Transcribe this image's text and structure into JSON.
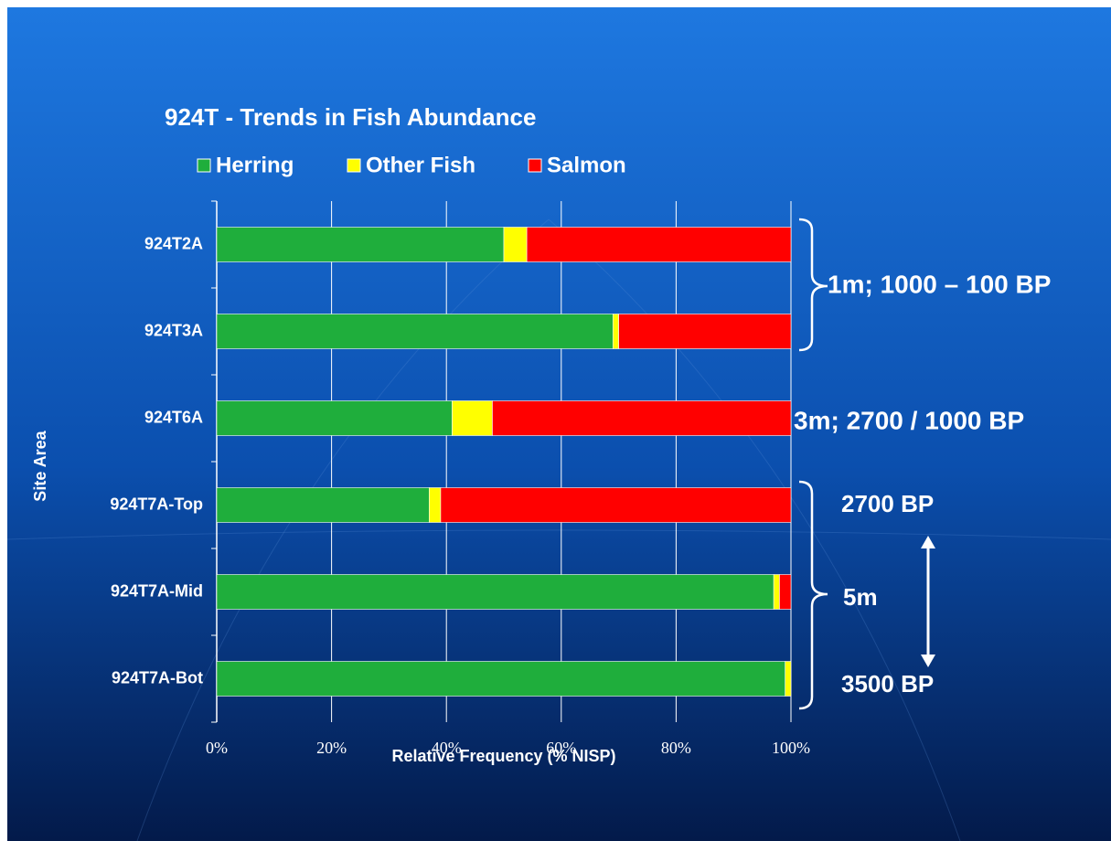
{
  "chart_data": {
    "type": "stacked_barh",
    "title": "924T - Trends in Fish Abundance",
    "categories": [
      "924T2A",
      "924T3A",
      "924T6A",
      "924T7A-Top",
      "924T7A-Mid",
      "924T7A-Bot"
    ],
    "series": [
      {
        "name": "Herring",
        "color": "#1fae3c",
        "values": [
          50,
          69,
          41,
          37,
          97,
          99
        ]
      },
      {
        "name": "Other Fish",
        "color": "#ffff00",
        "values": [
          4,
          1,
          7,
          2,
          1,
          1
        ]
      },
      {
        "name": "Salmon",
        "color": "#ff0000",
        "values": [
          46,
          30,
          52,
          61,
          2,
          0
        ]
      }
    ],
    "xlim": [
      0,
      100
    ],
    "xticks": [
      {
        "value": 0,
        "label": "0%"
      },
      {
        "value": 20,
        "label": "20%"
      },
      {
        "value": 40,
        "label": "40%"
      },
      {
        "value": 60,
        "label": "60%"
      },
      {
        "value": 80,
        "label": "80%"
      },
      {
        "value": 100,
        "label": "100%"
      }
    ],
    "xlabel": "Relative Frequency (% NISP)",
    "ylabel": "Site Area",
    "grid": true,
    "annotations": [
      "1m; 1000 – 100 BP",
      "3m; 2700 / 1000 BP",
      "2700 BP",
      "5m",
      "3500 BP"
    ]
  }
}
